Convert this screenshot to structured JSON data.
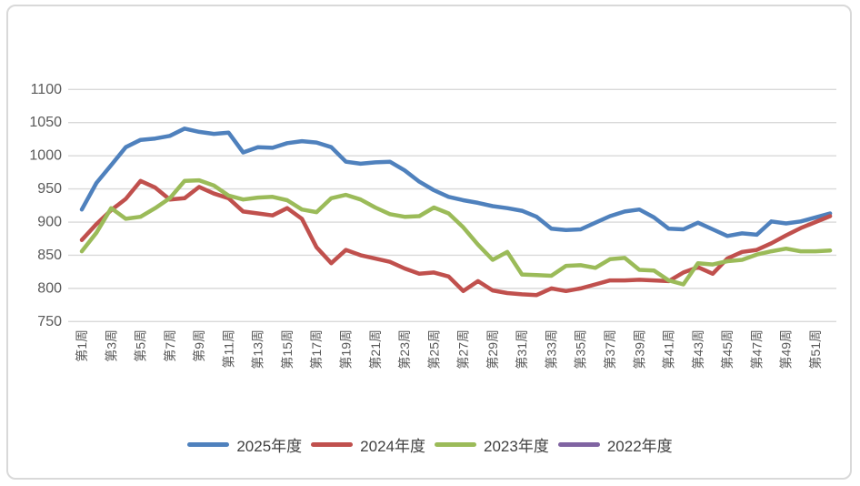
{
  "chart_data": {
    "type": "line",
    "title": "",
    "xlabel": "",
    "ylabel": "",
    "x_unit": "week",
    "x_count": 52,
    "x_tick_step": 2,
    "x_tick_prefix": "第",
    "x_tick_suffix": "周",
    "x_tick_labels": [
      "第1周",
      "第3周",
      "第5周",
      "第7周",
      "第9周",
      "第11周",
      "第13周",
      "第15周",
      "第17周",
      "第19周",
      "第21周",
      "第23周",
      "第25周",
      "第27周",
      "第29周",
      "第31周",
      "第33周",
      "第35周",
      "第37周",
      "第39周",
      "第41周",
      "第43周",
      "第45周",
      "第47周",
      "第49周",
      "第51周"
    ],
    "ylim": [
      750,
      1100
    ],
    "y_tick_step": 50,
    "y_tick_labels": [
      "750",
      "800",
      "850",
      "900",
      "950",
      "1000",
      "1050",
      "1100"
    ],
    "grid": "horizontal",
    "legend_position": "bottom",
    "series": [
      {
        "name": "2025年度",
        "color": "#4F81BD",
        "values": [
          919,
          959,
          986,
          1013,
          1024,
          1026,
          1030,
          1041,
          1036,
          1033,
          1035,
          1005,
          1013,
          1012,
          1019,
          1022,
          1020,
          1013,
          991,
          988,
          990,
          991,
          978,
          961,
          948,
          938,
          933,
          929,
          924,
          921,
          917,
          908,
          890,
          888,
          889,
          899,
          909,
          916,
          919,
          907,
          890,
          889,
          899,
          889,
          879,
          883,
          881,
          901,
          898,
          901,
          907,
          913
        ]
      },
      {
        "name": "2024年度",
        "color": "#C0504D",
        "values": [
          873,
          897,
          918,
          935,
          962,
          952,
          934,
          936,
          953,
          943,
          936,
          916,
          913,
          910,
          921,
          905,
          862,
          838,
          858,
          850,
          845,
          840,
          830,
          822,
          824,
          818,
          796,
          811,
          797,
          793,
          791,
          790,
          800,
          796,
          800,
          806,
          812,
          812,
          813,
          812,
          811,
          824,
          832,
          822,
          845,
          855,
          858,
          868,
          880,
          891,
          900,
          909
        ]
      },
      {
        "name": "2023年度",
        "color": "#9BBB59",
        "values": [
          856,
          884,
          921,
          905,
          908,
          921,
          936,
          962,
          963,
          955,
          940,
          934,
          937,
          938,
          933,
          919,
          915,
          936,
          941,
          934,
          922,
          912,
          908,
          909,
          922,
          913,
          892,
          866,
          843,
          855,
          821,
          820,
          819,
          834,
          835,
          831,
          844,
          846,
          828,
          827,
          812,
          806,
          838,
          836,
          841,
          843,
          851,
          856,
          860,
          856,
          856,
          857
        ]
      },
      {
        "name": "2022年度",
        "color": "#8064A2",
        "values": []
      }
    ],
    "style": {
      "gridline_color": "#d9d9d9",
      "axis_text_color": "#595959",
      "legend_text_color": "#404040",
      "line_width": 4.5
    }
  }
}
